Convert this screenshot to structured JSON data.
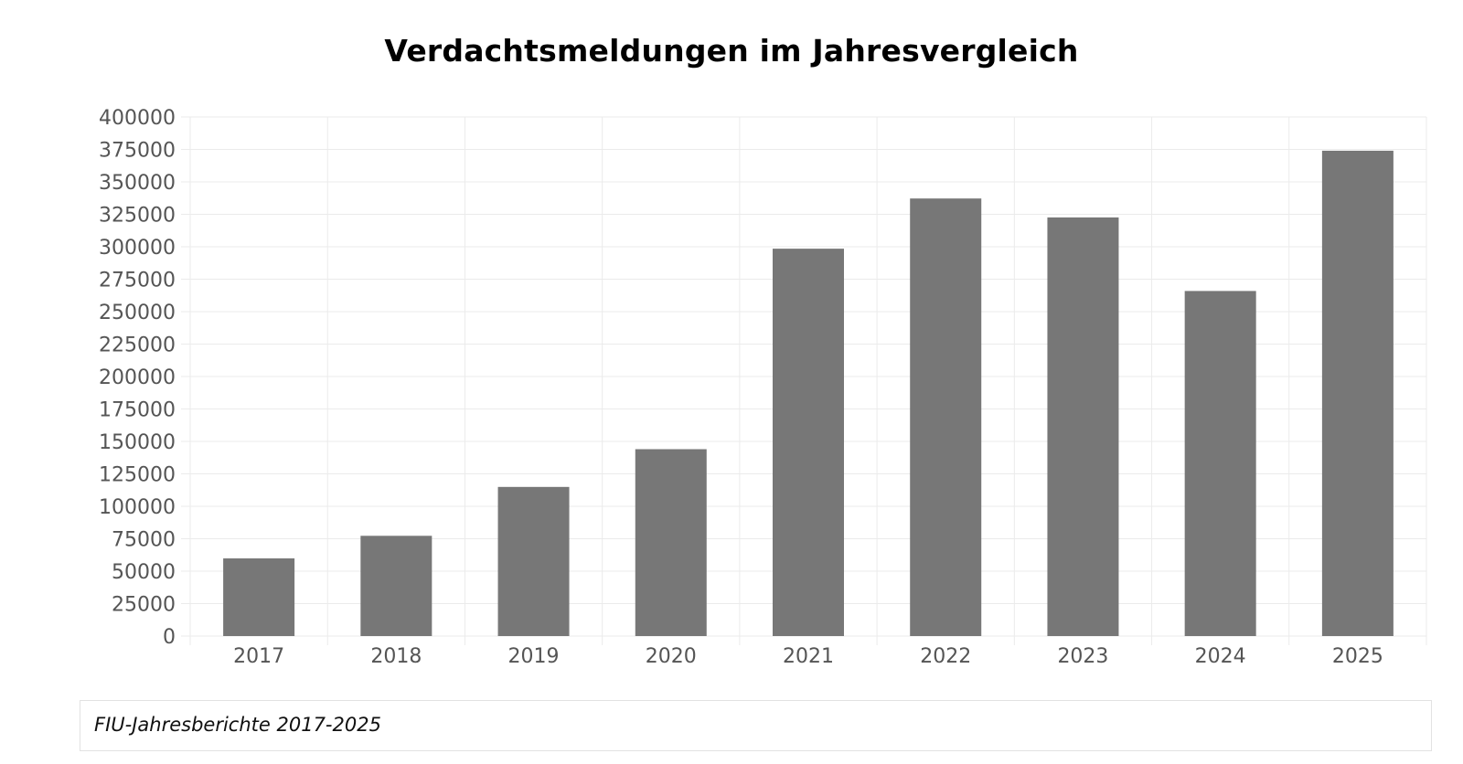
{
  "chart_data": {
    "type": "bar",
    "title": "Verdachtsmeldungen im Jahresvergleich",
    "categories": [
      "2017",
      "2018",
      "2019",
      "2020",
      "2021",
      "2022",
      "2023",
      "2024",
      "2025"
    ],
    "values": [
      59845,
      77252,
      114914,
      144005,
      298507,
      337186,
      322590,
      265907,
      374000
    ],
    "ylim": [
      0,
      400000
    ],
    "yticks": [
      "0",
      "25000",
      "50000",
      "75000",
      "100000",
      "125000",
      "150000",
      "175000",
      "200000",
      "225000",
      "250000",
      "275000",
      "300000",
      "325000",
      "350000",
      "375000",
      "400000"
    ],
    "grid": true,
    "legend": "none",
    "bar_color": "#777777",
    "grid_color": "#ebebeb",
    "tick_label_color": "#555555"
  },
  "source": {
    "label": "FIU-Jahresberichte 2017-2025"
  }
}
